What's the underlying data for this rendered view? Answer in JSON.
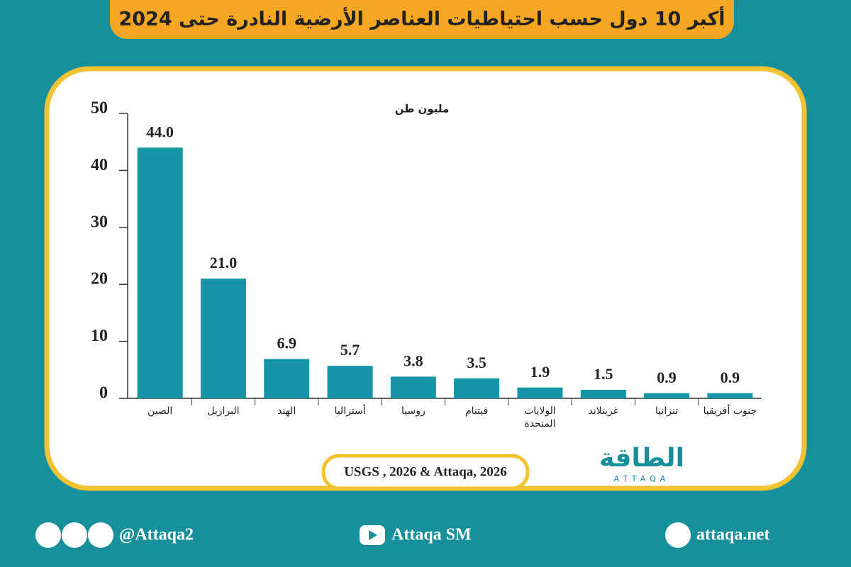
{
  "chart_data": {
    "type": "bar",
    "title": "أكبر 10 دول حسب احتياطيات العناصر الأرضية النادرة حتى 2024",
    "unit": "مليون طن",
    "categories": [
      "الصين",
      "البرازيل",
      "الهند",
      "أستراليا",
      "روسيا",
      "فيتنام",
      "الولايات المتحدة",
      "غرينلاند",
      "تنزانيا",
      "جنوب أفريقيا"
    ],
    "values": [
      44.0,
      21.0,
      6.9,
      5.7,
      3.8,
      3.5,
      1.9,
      1.5,
      0.9,
      0.9
    ],
    "value_labels": [
      "44.0",
      "21.0",
      "6.9",
      "5.7",
      "3.8",
      "3.5",
      "1.9",
      "1.5",
      "0.9",
      "0.9"
    ],
    "color": "#1595a6",
    "ylim": [
      0,
      50
    ],
    "yticks": [
      0,
      10,
      20,
      30,
      40,
      50
    ],
    "source": "USGS , 2026 & Attaqa, 2026"
  },
  "logo": {
    "text": "الطاقة",
    "subtext": "ATTAQA"
  },
  "footer": {
    "social": "@Attaqa2",
    "youtube": "Attaqa SM",
    "website": "attaqa.net"
  }
}
